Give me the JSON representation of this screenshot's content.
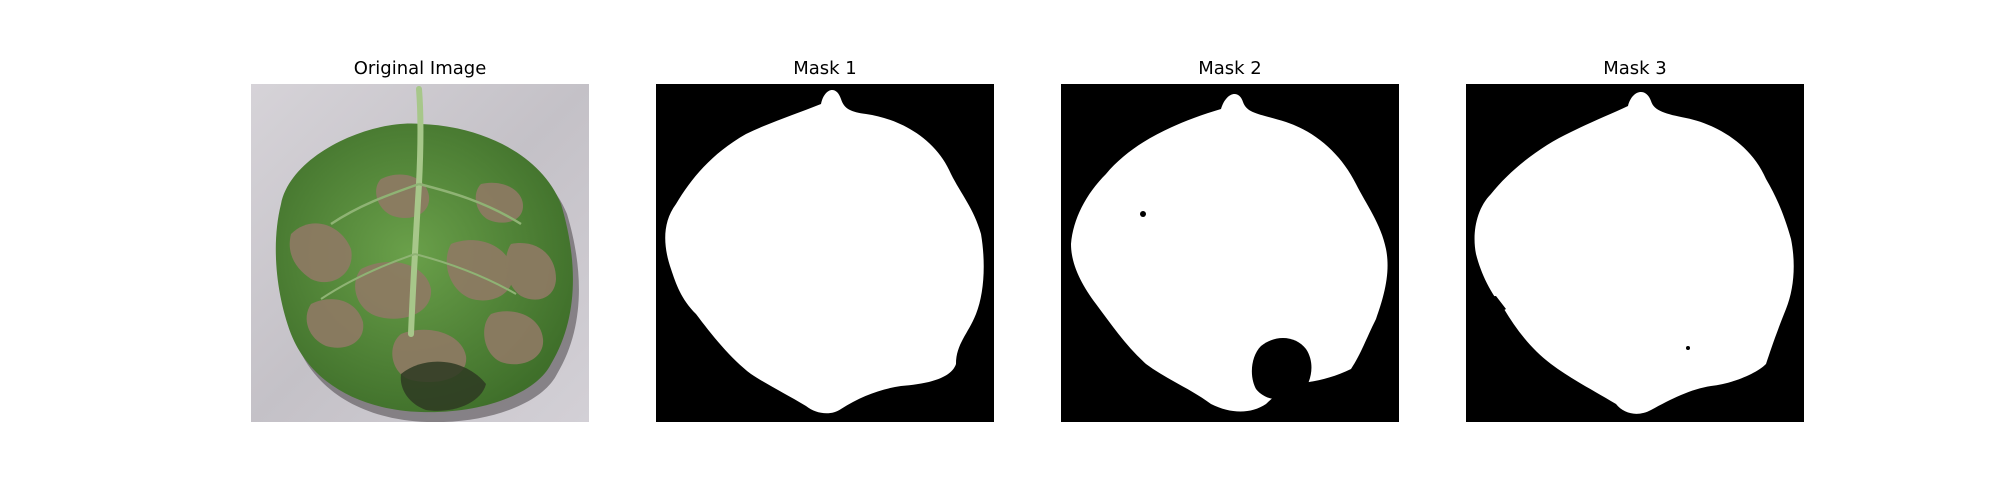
{
  "panels": [
    {
      "title": "Original Image",
      "kind": "photo",
      "description_icon": "leaf-photo"
    },
    {
      "title": "Mask 1",
      "kind": "mask",
      "description_icon": "binary-mask"
    },
    {
      "title": "Mask 2",
      "kind": "mask",
      "description_icon": "binary-mask"
    },
    {
      "title": "Mask 3",
      "kind": "mask",
      "description_icon": "binary-mask"
    }
  ],
  "colors": {
    "background": "#ffffff",
    "mask_foreground": "#ffffff",
    "mask_background": "#000000",
    "photo_backdrop": "#c9c6cc",
    "leaf_green": "#5a8f3c",
    "leaf_brown": "#8a7560"
  }
}
